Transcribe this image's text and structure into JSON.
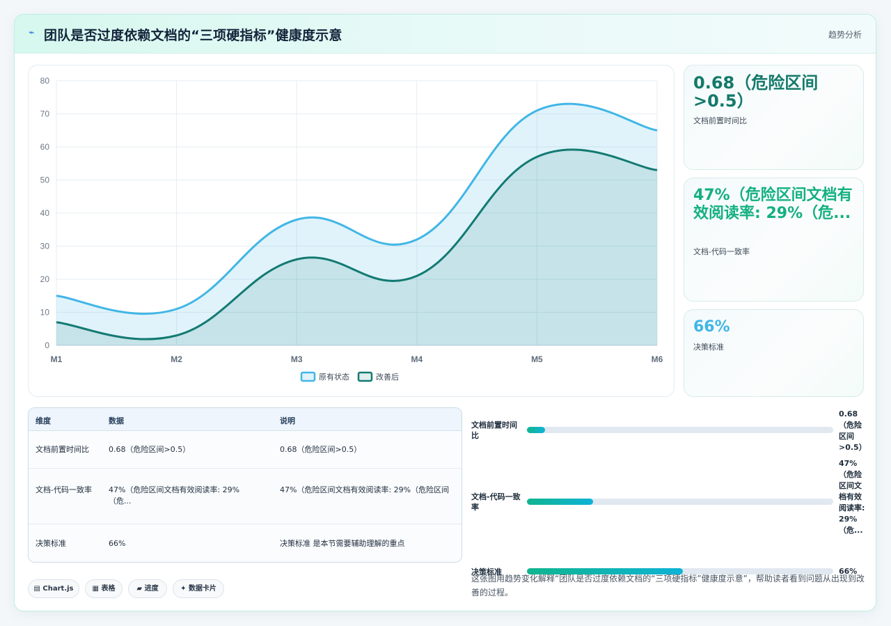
{
  "header": {
    "title": "团队是否过度依赖文档的“三项硬指标”健康度示意",
    "link": "趋势分析",
    "icon": "lightning-icon"
  },
  "chart_data": {
    "type": "area",
    "categories": [
      "M1",
      "M2",
      "M3",
      "M4",
      "M5",
      "M6"
    ],
    "series": [
      {
        "name": "原有状态",
        "values": [
          15,
          11,
          38,
          32,
          71,
          65
        ]
      },
      {
        "name": "改善后",
        "values": [
          7,
          3,
          26,
          21,
          57,
          53
        ]
      }
    ],
    "ylim": [
      0,
      80
    ],
    "yticks": [
      0,
      10,
      20,
      30,
      40,
      50,
      60,
      70,
      80
    ],
    "grid": true,
    "legend": "bottom",
    "colors": [
      "#41b6e6",
      "#137a72"
    ]
  },
  "kpis": [
    {
      "value": "0.68（危险区间 >0.5）",
      "label": "文档前置时间比",
      "color": "#137a6a"
    },
    {
      "value": "47%（危险区间文档有效阅读率: 29%（危...",
      "label": "文档-代码一致率",
      "color": "#14b07f"
    },
    {
      "value": "66%",
      "label": "决策标准",
      "color": "#41b6e6"
    }
  ],
  "table": {
    "headers": [
      "维度",
      "数据",
      "说明"
    ],
    "rows": [
      {
        "dim": "文档前置时间比",
        "data": "0.68（危险区间>0.5）",
        "desc": "0.68（危险区间>0.5）"
      },
      {
        "dim": "文档-代码一致率",
        "data": "47%（危险区间文档有效阅读率: 29%（危...",
        "desc": "47%（危险区间文档有效阅读率: 29%（危险区间"
      },
      {
        "dim": "决策标准",
        "data": "66%",
        "desc": "决策标准 是本节需要辅助理解的重点"
      }
    ]
  },
  "progress": [
    {
      "label": "文档前置时间比",
      "value": "0.68（危险区间>0.5）",
      "fraction": 0.06
    },
    {
      "label": "文档-代码一致率",
      "value": "47%（危险区间文档有效阅读率: 29%（危...",
      "fraction": 0.215
    },
    {
      "label": "决策标准",
      "value": "66%",
      "fraction": 0.508
    }
  ],
  "tags": [
    {
      "label": "Chart.js",
      "icon": "chart-icon"
    },
    {
      "label": "表格",
      "icon": "table-icon"
    },
    {
      "label": "进度",
      "icon": "progress-icon"
    },
    {
      "label": "数据卡片",
      "icon": "sparkle-icon"
    }
  ],
  "note": "这张图用趋势变化解释“团队是否过度依赖文档的“三项硬指标”健康度示意”，帮助读者看到问题从出现到改善的过程。"
}
